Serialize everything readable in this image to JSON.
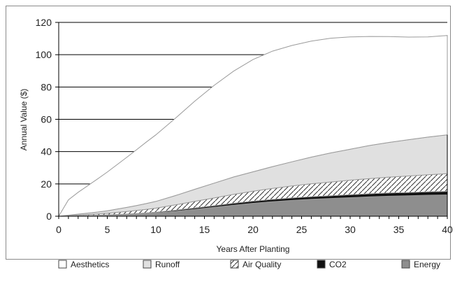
{
  "chart_data": {
    "type": "area",
    "stacked": true,
    "title": "",
    "xlabel": "Years After Planting",
    "ylabel": "Annual Value ($)",
    "xlim": [
      0,
      40
    ],
    "ylim": [
      0,
      120
    ],
    "x_ticks": [
      0,
      5,
      10,
      15,
      20,
      25,
      30,
      35,
      40
    ],
    "y_ticks": [
      0,
      20,
      40,
      60,
      80,
      100,
      120
    ],
    "grid": "horizontal",
    "legend_position": "bottom",
    "x": [
      0,
      1,
      2,
      3,
      4,
      5,
      6,
      7,
      8,
      9,
      10,
      12,
      14,
      16,
      18,
      20,
      22,
      24,
      26,
      28,
      30,
      32,
      34,
      36,
      38,
      40
    ],
    "series": [
      {
        "name": "Energy",
        "fill": "#8e8e8e",
        "pattern": "solid",
        "values": [
          0,
          0.1,
          0.2,
          0.3,
          0.4,
          0.6,
          0.8,
          1.0,
          1.3,
          1.6,
          2.0,
          3.0,
          4.2,
          5.5,
          6.8,
          8.0,
          9.0,
          9.8,
          10.5,
          11.0,
          11.5,
          12.0,
          12.4,
          12.7,
          13.0,
          13.2
        ]
      },
      {
        "name": "CO2",
        "fill": "#111111",
        "pattern": "solid",
        "values": [
          0,
          0.05,
          0.1,
          0.15,
          0.2,
          0.25,
          0.3,
          0.35,
          0.4,
          0.45,
          0.5,
          0.7,
          0.9,
          1.0,
          1.2,
          1.3,
          1.4,
          1.5,
          1.6,
          1.7,
          1.8,
          1.9,
          2.0,
          2.0,
          2.1,
          2.2
        ]
      },
      {
        "name": "Air Quality",
        "fill": "#ffffff",
        "pattern": "hatch",
        "values": [
          0,
          0.2,
          0.4,
          0.6,
          0.8,
          1.0,
          1.3,
          1.6,
          1.9,
          2.2,
          2.5,
          3.3,
          4.1,
          4.8,
          5.5,
          6.2,
          6.8,
          7.4,
          8.0,
          8.5,
          9.0,
          9.4,
          9.8,
          10.2,
          10.6,
          11.0
        ]
      },
      {
        "name": "Runoff",
        "fill": "#e0e0e0",
        "pattern": "solid",
        "values": [
          0,
          0.3,
          0.6,
          0.9,
          1.2,
          1.5,
          2.0,
          2.5,
          3.0,
          3.6,
          4.2,
          5.8,
          7.5,
          9.2,
          10.8,
          12.0,
          13.5,
          15.0,
          16.5,
          18.0,
          19.2,
          20.5,
          21.5,
          22.5,
          23.3,
          24.0
        ]
      },
      {
        "name": "Aesthetics",
        "fill": "#ffffff",
        "pattern": "solid",
        "values": [
          0,
          9.5,
          13.5,
          17.0,
          20.5,
          24.0,
          27.5,
          31.0,
          34.5,
          38.0,
          41.2,
          47.8,
          54.5,
          60.5,
          65.5,
          69.5,
          71.5,
          72.0,
          71.8,
          71.0,
          69.5,
          67.5,
          65.5,
          63.5,
          62.0,
          61.5
        ]
      }
    ],
    "legend_order": [
      "Aesthetics",
      "Runoff",
      "Air Quality",
      "CO2",
      "Energy"
    ]
  }
}
